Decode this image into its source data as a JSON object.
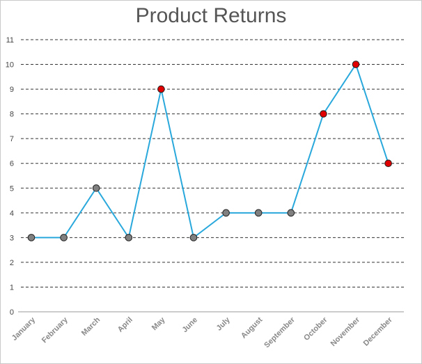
{
  "chart_data": {
    "type": "line",
    "title": "Product Returns",
    "categories": [
      "January",
      "February",
      "March",
      "April",
      "May",
      "June",
      "July",
      "August",
      "September",
      "October",
      "November",
      "December"
    ],
    "series": [
      {
        "values": [
          3,
          3,
          5,
          3,
          9,
          3,
          4,
          4,
          4,
          8,
          10,
          6
        ]
      }
    ],
    "ylim": [
      0,
      11
    ],
    "yticks": [
      0,
      1,
      2,
      3,
      4,
      5,
      6,
      7,
      8,
      9,
      10,
      11
    ],
    "grid": true,
    "colors": {
      "line": "#29a8dc",
      "point_normal": "#808080",
      "point_high": "#e00000",
      "gridline": "#333333",
      "axis": "#cccccc"
    },
    "highlight_threshold": 6
  }
}
